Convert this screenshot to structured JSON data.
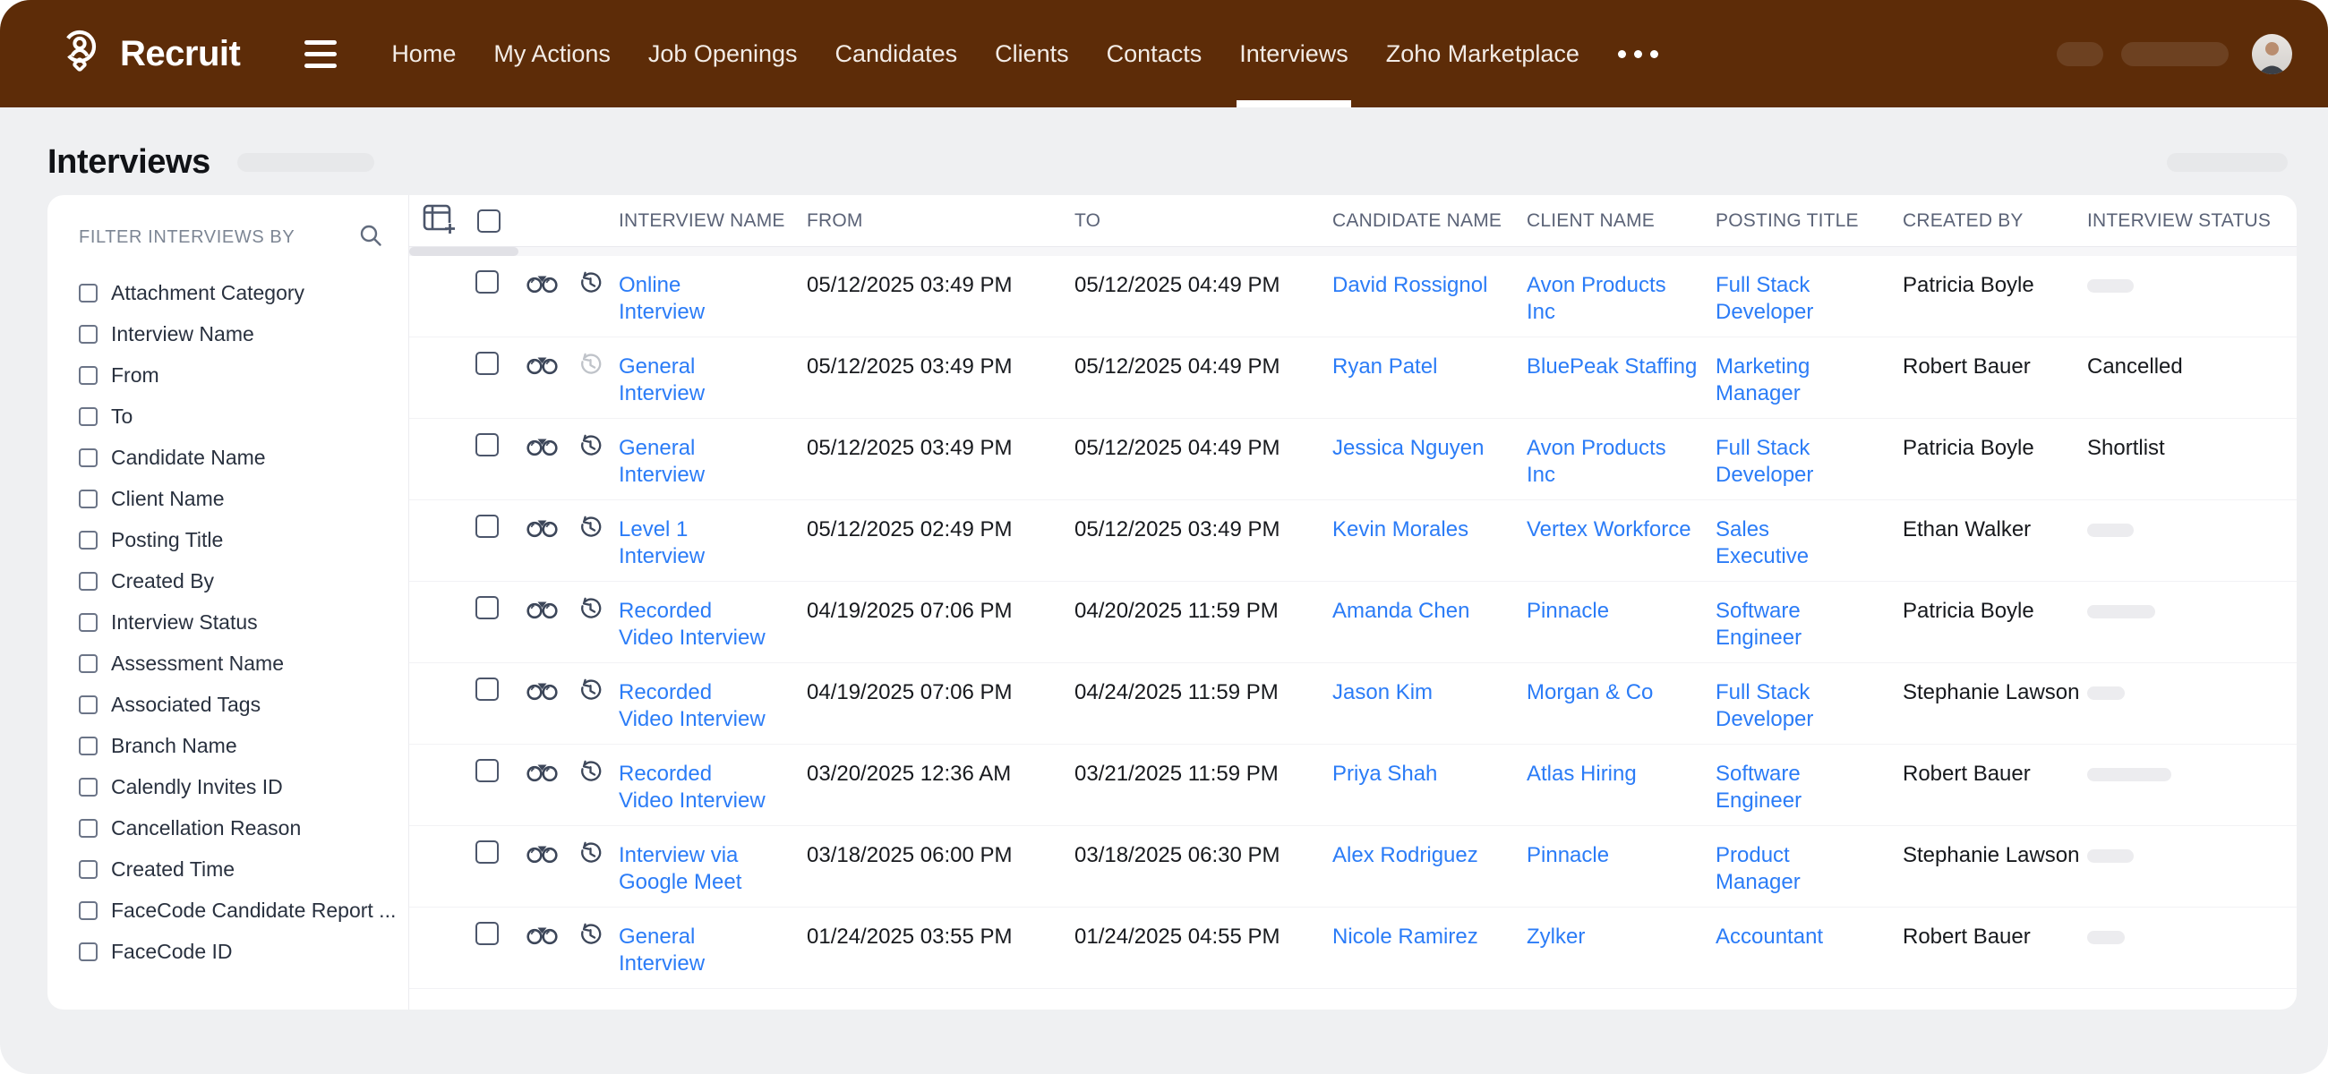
{
  "nav": {
    "brand": "Recruit",
    "items": [
      {
        "label": "Home",
        "active": false
      },
      {
        "label": "My Actions",
        "active": false
      },
      {
        "label": "Job Openings",
        "active": false
      },
      {
        "label": "Candidates",
        "active": false
      },
      {
        "label": "Clients",
        "active": false
      },
      {
        "label": "Contacts",
        "active": false
      },
      {
        "label": "Interviews",
        "active": true
      },
      {
        "label": "Zoho Marketplace",
        "active": false
      }
    ],
    "more_icon": "ellipsis-icon",
    "colors": {
      "bar": "#5D2C08",
      "text": "#FFFFFF"
    }
  },
  "page": {
    "title": "Interviews"
  },
  "filter_panel": {
    "header": "FILTER INTERVIEWS BY",
    "search_icon": "magnifier",
    "items": [
      "Attachment Category",
      "Interview Name",
      "From",
      "To",
      "Candidate Name",
      "Client Name",
      "Posting Title",
      "Created By",
      "Interview Status",
      "Assessment Name",
      "Associated Tags",
      "Branch Name",
      "Calendly Invites ID",
      "Cancellation Reason",
      "Created Time",
      "FaceCode Candidate Report ...",
      "FaceCode ID"
    ]
  },
  "table": {
    "columns": [
      "INTERVIEW NAME",
      "FROM",
      "TO",
      "CANDIDATE NAME",
      "CLIENT NAME",
      "POSTING TITLE",
      "CREATED BY",
      "INTERVIEW STATUS"
    ],
    "link_color": "#2B7CF7",
    "rows": [
      {
        "name": "Online\nInterview",
        "from": "05/12/2025 03:49 PM",
        "to": "05/12/2025 04:49 PM",
        "candidate": "David Rossignol",
        "client": "Avon Products\nInc",
        "posting": "Full Stack\nDeveloper",
        "created_by": "Patricia Boyle",
        "status": "",
        "status_skeleton": "s",
        "history_dimmed": false
      },
      {
        "name": "General\nInterview",
        "from": "05/12/2025 03:49 PM",
        "to": "05/12/2025 04:49 PM",
        "candidate": "Ryan Patel",
        "client": "BluePeak Staffing",
        "posting": "Marketing\nManager",
        "created_by": "Robert Bauer",
        "status": "Cancelled",
        "status_skeleton": "",
        "history_dimmed": true
      },
      {
        "name": "General\nInterview",
        "from": "05/12/2025 03:49 PM",
        "to": "05/12/2025 04:49 PM",
        "candidate": "Jessica Nguyen",
        "client": "Avon Products\nInc",
        "posting": "Full Stack\nDeveloper",
        "created_by": "Patricia Boyle",
        "status": "Shortlist",
        "status_skeleton": "",
        "history_dimmed": false
      },
      {
        "name": "Level 1\nInterview",
        "from": "05/12/2025 02:49 PM",
        "to": "05/12/2025 03:49 PM",
        "candidate": "Kevin Morales",
        "client": "Vertex Workforce",
        "posting": "Sales\nExecutive",
        "created_by": "Ethan Walker",
        "status": "",
        "status_skeleton": "s",
        "history_dimmed": false
      },
      {
        "name": "Recorded\nVideo Interview",
        "from": "04/19/2025 07:06 PM",
        "to": "04/20/2025 11:59 PM",
        "candidate": "Amanda Chen",
        "client": "Pinnacle",
        "posting": "Software\nEngineer",
        "created_by": "Patricia Boyle",
        "status": "",
        "status_skeleton": "m",
        "history_dimmed": false
      },
      {
        "name": "Recorded\nVideo Interview",
        "from": "04/19/2025 07:06 PM",
        "to": "04/24/2025 11:59 PM",
        "candidate": "Jason Kim",
        "client": "Morgan & Co",
        "posting": "Full Stack\nDeveloper",
        "created_by": "Stephanie Lawson",
        "status": "",
        "status_skeleton": "xs",
        "history_dimmed": false
      },
      {
        "name": "Recorded\nVideo Interview",
        "from": "03/20/2025 12:36 AM",
        "to": "03/21/2025 11:59 PM",
        "candidate": "Priya Shah",
        "client": "Atlas Hiring",
        "posting": "Software\nEngineer",
        "created_by": "Robert Bauer",
        "status": "",
        "status_skeleton": "l",
        "history_dimmed": false
      },
      {
        "name": "Interview via\nGoogle Meet",
        "from": "03/18/2025 06:00 PM",
        "to": "03/18/2025 06:30 PM",
        "candidate": "Alex Rodriguez",
        "client": "Pinnacle",
        "posting": "Product\nManager",
        "created_by": "Stephanie Lawson",
        "status": "",
        "status_skeleton": "s",
        "history_dimmed": false
      },
      {
        "name": "General\nInterview",
        "from": "01/24/2025 03:55 PM",
        "to": "01/24/2025 04:55 PM",
        "candidate": "Nicole Ramirez",
        "client": "Zylker",
        "posting": "Accountant",
        "created_by": "Robert Bauer",
        "status": "",
        "status_skeleton": "xs",
        "history_dimmed": false
      }
    ]
  }
}
